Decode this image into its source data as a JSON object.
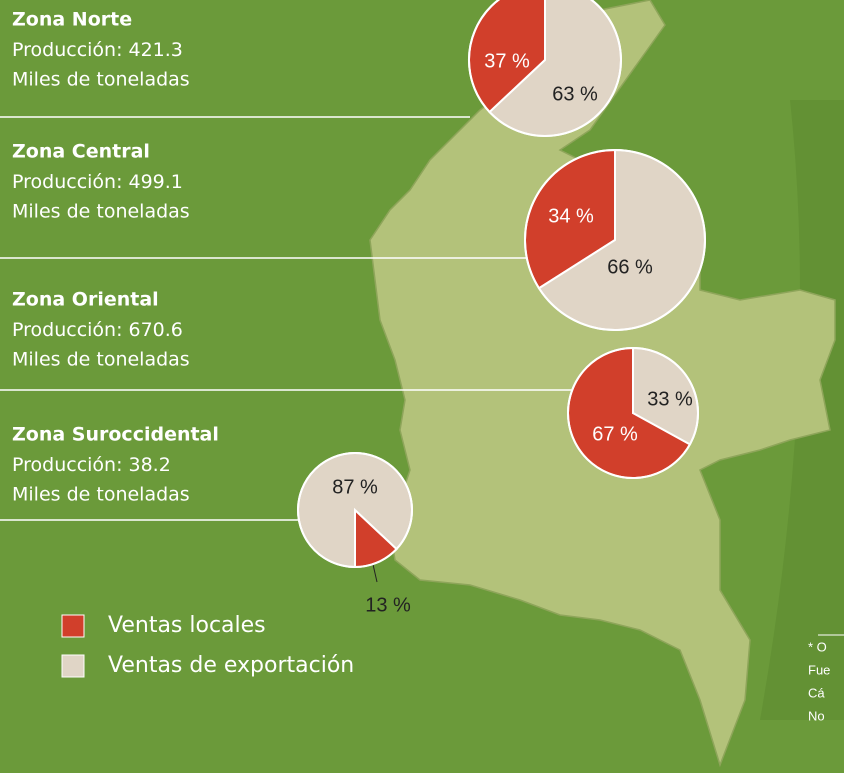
{
  "zones": [
    {
      "name": "Zona Norte",
      "production_label": "Producción:",
      "production": 421.3,
      "unit": "Miles de toneladas",
      "values": [
        37,
        63
      ],
      "value_labels": [
        "37 %",
        "63 %"
      ]
    },
    {
      "name": "Zona Central",
      "production_label": "Producción:",
      "production": 499.1,
      "unit": "Miles de toneladas",
      "values": [
        34,
        66
      ],
      "value_labels": [
        "34 %",
        "66 %"
      ]
    },
    {
      "name": "Zona Oriental",
      "production_label": "Producción:",
      "production": 670.6,
      "unit": "Miles de toneladas",
      "values": [
        67,
        33
      ],
      "value_labels": [
        "67 %",
        "33 %"
      ]
    },
    {
      "name": "Zona Suroccidental",
      "production_label": "Producción:",
      "production": 38.2,
      "unit": "Miles de toneladas",
      "values": [
        13,
        87
      ],
      "value_labels": [
        "13 %",
        "87 %"
      ]
    }
  ],
  "legend": [
    {
      "name": "Ventas locales",
      "color": "#d13f2b"
    },
    {
      "name": "Ventas de exportación",
      "color": "#e0d5c6"
    }
  ],
  "footnote": [
    "* O",
    "Fue",
    "Cá",
    "No"
  ]
}
